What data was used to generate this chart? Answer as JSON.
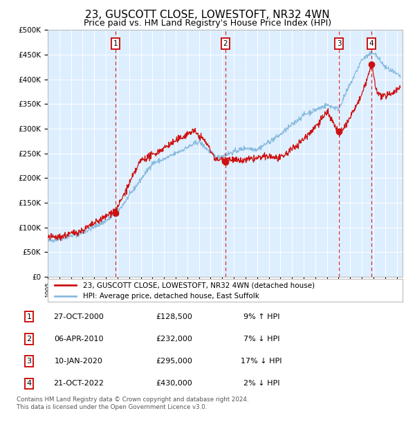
{
  "title": "23, GUSCOTT CLOSE, LOWESTOFT, NR32 4WN",
  "subtitle": "Price paid vs. HM Land Registry's House Price Index (HPI)",
  "title_fontsize": 11,
  "subtitle_fontsize": 9,
  "background_color": "#ffffff",
  "plot_bg_color": "#ddeeff",
  "grid_color": "#ffffff",
  "hpi_color": "#88bbdd",
  "price_color": "#cc1111",
  "sale_marker_color": "#cc1111",
  "dashed_line_color": "#cc1111",
  "annotation_box_color": "#cc1111",
  "ylim": [
    0,
    500000
  ],
  "yticks": [
    0,
    50000,
    100000,
    150000,
    200000,
    250000,
    300000,
    350000,
    400000,
    450000,
    500000
  ],
  "xlim_start": 1995.0,
  "xlim_end": 2025.5,
  "sales": [
    {
      "num": 1,
      "year": 2000.82,
      "price": 128500
    },
    {
      "num": 2,
      "year": 2010.27,
      "price": 232000
    },
    {
      "num": 3,
      "year": 2020.04,
      "price": 295000
    },
    {
      "num": 4,
      "year": 2022.81,
      "price": 430000
    }
  ],
  "sale_labels": [
    {
      "num": 1,
      "date": "27-OCT-2000",
      "price": "£128,500",
      "hpi_diff": "9% ↑ HPI"
    },
    {
      "num": 2,
      "date": "06-APR-2010",
      "price": "£232,000",
      "hpi_diff": "7% ↓ HPI"
    },
    {
      "num": 3,
      "date": "10-JAN-2020",
      "price": "£295,000",
      "hpi_diff": "17% ↓ HPI"
    },
    {
      "num": 4,
      "date": "21-OCT-2022",
      "price": "£430,000",
      "hpi_diff": "2% ↓ HPI"
    }
  ],
  "legend_labels": [
    "23, GUSCOTT CLOSE, LOWESTOFT, NR32 4WN (detached house)",
    "HPI: Average price, detached house, East Suffolk"
  ],
  "footer": "Contains HM Land Registry data © Crown copyright and database right 2024.\nThis data is licensed under the Open Government Licence v3.0."
}
